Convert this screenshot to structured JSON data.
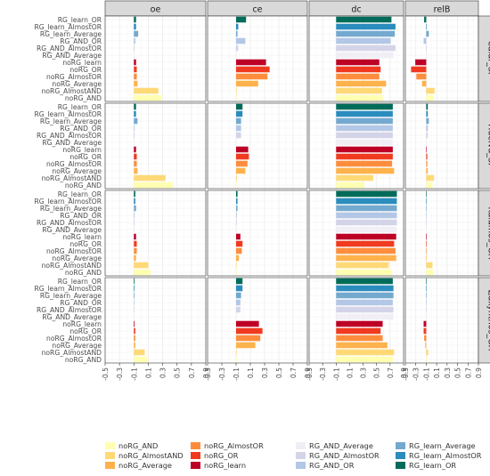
{
  "chart_data": {
    "type": "bar",
    "orientation": "horizontal",
    "grid": true,
    "legend_position": "bottom",
    "facet_columns": [
      "oe",
      "ce",
      "dc",
      "relB"
    ],
    "facet_rows": [
      "Calar_SP",
      "Huelva_SP",
      "Kalamos_GR",
      "Zakynthos_GR"
    ],
    "categories": [
      "RG_learn_OR",
      "RG_learn_AlmostOR",
      "RG_learn_Average",
      "RG_AND_OR",
      "RG_AND_AlmostOR",
      "RG_AND_Average",
      "noRG_learn",
      "noRG_OR",
      "noRG_AlmostOR",
      "noRG_Average",
      "noRG_AlmostAND",
      "noRG_AND"
    ],
    "xlim": [
      -0.5,
      0.9
    ],
    "x_ticks": [
      "-0.5",
      "-0.3",
      "-0.1",
      "0.1",
      "0.3",
      "0.5",
      "0.7",
      "0.9"
    ],
    "x_tick_values": [
      -0.5,
      -0.3,
      -0.1,
      0.1,
      0.3,
      0.5,
      0.7,
      0.9
    ],
    "colors": {
      "noRG_AND": "#ffffb2",
      "noRG_AlmostAND": "#fed976",
      "noRG_Average": "#feb24c",
      "noRG_AlmostOR": "#fd8d3c",
      "noRG_OR": "#f03b20",
      "noRG_learn": "#bd0026",
      "RG_AND_Average": "#f1eef6",
      "RG_AND_AlmostOR": "#d4d4e8",
      "RG_AND_OR": "#b3c7e6",
      "RG_learn_Average": "#74a9cf",
      "RG_learn_AlmostOR": "#2b8cbe",
      "RG_learn_OR": "#016c59"
    },
    "legend": [
      "noRG_AND",
      "noRG_AlmostAND",
      "noRG_Average",
      "noRG_AlmostOR",
      "noRG_OR",
      "noRG_learn",
      "RG_AND_Average",
      "RG_AND_AlmostOR",
      "RG_AND_OR",
      "RG_learn_Average",
      "RG_learn_AlmostOR",
      "RG_learn_OR"
    ],
    "panels": {
      "Calar_SP": {
        "oe": [
          -0.07,
          -0.07,
          -0.04,
          -0.08,
          -0.09,
          -0.1,
          -0.07,
          -0.06,
          -0.06,
          -0.05,
          0.24,
          0.28
        ],
        "ce": [
          0.04,
          -0.07,
          -0.08,
          0.03,
          -0.07,
          -0.1,
          0.32,
          0.37,
          0.34,
          0.21,
          -0.1,
          -0.1
        ],
        "dc": [
          0.72,
          0.78,
          0.77,
          0.71,
          0.78,
          0.75,
          0.54,
          0.56,
          0.54,
          0.64,
          0.58,
          0.59
        ],
        "relB": [
          -0.14,
          -0.1,
          -0.05,
          -0.15,
          -0.1,
          -0.1,
          -0.31,
          -0.39,
          -0.29,
          -0.18,
          0.06,
          0.04
        ]
      },
      "Huelva_SP": {
        "oe": [
          -0.07,
          -0.07,
          -0.05,
          -0.09,
          -0.09,
          -0.1,
          -0.07,
          -0.06,
          -0.06,
          -0.05,
          0.34,
          0.44
        ],
        "ce": [
          -0.01,
          -0.01,
          -0.03,
          -0.03,
          -0.03,
          -0.1,
          0.07,
          0.08,
          0.06,
          0.03,
          -0.09,
          -0.1
        ],
        "dc": [
          0.74,
          0.74,
          0.74,
          0.74,
          0.74,
          0.74,
          0.74,
          0.74,
          0.73,
          0.76,
          0.45,
          0.32
        ],
        "relB": [
          -0.07,
          -0.07,
          -0.05,
          -0.07,
          -0.07,
          -0.09,
          -0.09,
          -0.08,
          -0.08,
          -0.07,
          0.05,
          0.02
        ]
      },
      "Kalamos_GR": {
        "oe": [
          -0.08,
          -0.08,
          -0.07,
          -0.09,
          -0.09,
          -0.1,
          -0.07,
          -0.06,
          -0.06,
          -0.07,
          0.1,
          0.13
        ],
        "ce": [
          -0.08,
          -0.08,
          -0.08,
          -0.09,
          -0.09,
          -0.1,
          -0.04,
          -0.01,
          -0.02,
          -0.06,
          -0.1,
          -0.1
        ],
        "dc": [
          0.8,
          0.8,
          0.8,
          0.8,
          0.8,
          0.79,
          0.79,
          0.76,
          0.78,
          0.79,
          0.68,
          0.73
        ],
        "relB": [
          -0.09,
          -0.09,
          -0.09,
          -0.09,
          -0.09,
          -0.1,
          -0.09,
          -0.1,
          -0.09,
          -0.09,
          0.02,
          0.04
        ]
      },
      "Zakynthos_GR": {
        "oe": [
          -0.09,
          -0.09,
          -0.09,
          -0.1,
          -0.1,
          -0.1,
          -0.09,
          -0.08,
          -0.08,
          -0.08,
          0.05,
          0.09
        ],
        "ce": [
          -0.01,
          -0.01,
          -0.03,
          -0.04,
          -0.04,
          -0.1,
          0.22,
          0.27,
          0.24,
          0.17,
          -0.1,
          -0.1
        ],
        "dc": [
          0.74,
          0.75,
          0.75,
          0.74,
          0.75,
          0.75,
          0.59,
          0.56,
          0.59,
          0.66,
          0.76,
          0.74
        ],
        "relB": [
          -0.1,
          -0.1,
          -0.1,
          -0.1,
          -0.1,
          -0.1,
          -0.15,
          -0.15,
          -0.14,
          -0.12,
          -0.06,
          -0.08
        ]
      }
    }
  }
}
